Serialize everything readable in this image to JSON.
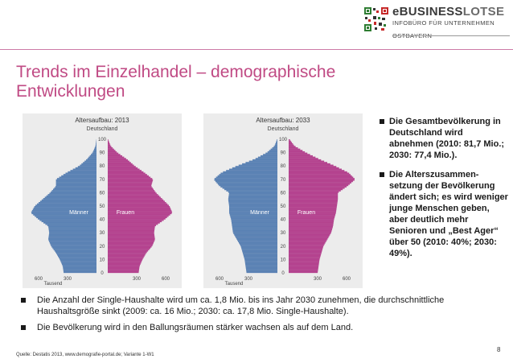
{
  "logo": {
    "brand_e": "e",
    "brand_business": "BUSINESS",
    "brand_lotse": "LOTSE",
    "line1": "INFOBÜRO FÜR UNTERNEHMEN",
    "line2": "OSTBAYERN",
    "icon": "qr-code-icon"
  },
  "slide": {
    "title": "Trends im Einzelhandel – demographische Entwicklungen"
  },
  "pyramids": [
    {
      "title": "Altersaufbau: 2013",
      "subtitle": "Deutschland",
      "male_label": "Männer",
      "female_label": "Frauen",
      "unit": "Tausend",
      "x_ticks_left": [
        "600",
        "300"
      ],
      "x_ticks_right": [
        "300",
        "600"
      ],
      "age_ticks": [
        "100",
        "90",
        "80",
        "70",
        "60",
        "50",
        "40",
        "30",
        "20",
        "10",
        "0"
      ]
    },
    {
      "title": "Altersaufbau: 2033",
      "subtitle": "Deutschland",
      "male_label": "Männer",
      "female_label": "Frauen",
      "unit": "Tausend",
      "x_ticks_left": [
        "600",
        "300"
      ],
      "x_ticks_right": [
        "300",
        "600"
      ],
      "age_ticks": [
        "100",
        "90",
        "80",
        "70",
        "60",
        "50",
        "40",
        "30",
        "20",
        "10",
        "0"
      ]
    }
  ],
  "chart_data": [
    {
      "type": "bar",
      "title": "Altersaufbau: 2013",
      "subtitle": "Deutschland",
      "orientation": "horizontal-population-pyramid",
      "xlabel": "Tausend",
      "xlim": [
        0,
        700
      ],
      "ylim": [
        0,
        100
      ],
      "colors": {
        "male": "#5b82b4",
        "female": "#b4438f"
      },
      "series": [
        {
          "name": "Männer",
          "age": [
            0,
            5,
            10,
            15,
            20,
            25,
            30,
            35,
            40,
            45,
            50,
            55,
            60,
            65,
            70,
            75,
            80,
            85,
            90,
            95,
            100
          ],
          "values": [
            340,
            350,
            380,
            420,
            470,
            500,
            490,
            500,
            600,
            680,
            640,
            560,
            480,
            420,
            420,
            310,
            180,
            100,
            40,
            10,
            1
          ]
        },
        {
          "name": "Frauen",
          "age": [
            0,
            5,
            10,
            15,
            20,
            25,
            30,
            35,
            40,
            45,
            50,
            55,
            60,
            65,
            70,
            75,
            80,
            85,
            90,
            95,
            100
          ],
          "values": [
            320,
            330,
            360,
            400,
            460,
            490,
            480,
            490,
            590,
            670,
            640,
            570,
            500,
            450,
            470,
            380,
            280,
            200,
            100,
            30,
            3
          ]
        }
      ]
    },
    {
      "type": "bar",
      "title": "Altersaufbau: 2033",
      "subtitle": "Deutschland",
      "orientation": "horizontal-population-pyramid",
      "xlabel": "Tausend",
      "xlim": [
        0,
        700
      ],
      "ylim": [
        0,
        100
      ],
      "colors": {
        "male": "#5b82b4",
        "female": "#b4438f"
      },
      "series": [
        {
          "name": "Männer",
          "age": [
            0,
            5,
            10,
            15,
            20,
            25,
            30,
            35,
            40,
            45,
            50,
            55,
            60,
            65,
            70,
            75,
            80,
            85,
            90,
            95,
            100
          ],
          "values": [
            320,
            330,
            340,
            360,
            380,
            420,
            460,
            470,
            480,
            500,
            500,
            510,
            500,
            600,
            660,
            580,
            420,
            240,
            110,
            30,
            3
          ]
        },
        {
          "name": "Frauen",
          "age": [
            0,
            5,
            10,
            15,
            20,
            25,
            30,
            35,
            40,
            45,
            50,
            55,
            60,
            65,
            70,
            75,
            80,
            85,
            90,
            95,
            100
          ],
          "values": [
            300,
            310,
            320,
            340,
            360,
            400,
            440,
            460,
            470,
            490,
            500,
            510,
            510,
            610,
            690,
            620,
            480,
            320,
            180,
            60,
            8
          ]
        }
      ]
    }
  ],
  "bullets_side": [
    "Die Gesamtbevölkerung in Deutschland wird abnehmen (2010: 81,7 Mio.; 2030: 77,4 Mio.).",
    "Die Alterszusammen-setzung der Bevölkerung ändert sich; es wird weniger junge Menschen geben, aber deutlich mehr Senioren und „Best Ager“ über 50 (2010: 40%; 2030: 49%)."
  ],
  "bullets_bottom": [
    "Die Anzahl der Single-Haushalte wird um ca. 1,8 Mio. bis ins Jahr 2030 zunehmen, die durchschnittliche Haushaltsgröße sinkt (2009: ca. 16 Mio.; 2030: ca. 17,8 Mio. Single-Haushalte).",
    "Die Bevölkerung wird in den Ballungsräumen stärker wachsen als auf dem Land."
  ],
  "footer": {
    "source": "Quelle: Destatis 2013, www.demografie-portal.de; Variante 1-W1",
    "page_number": "8"
  }
}
